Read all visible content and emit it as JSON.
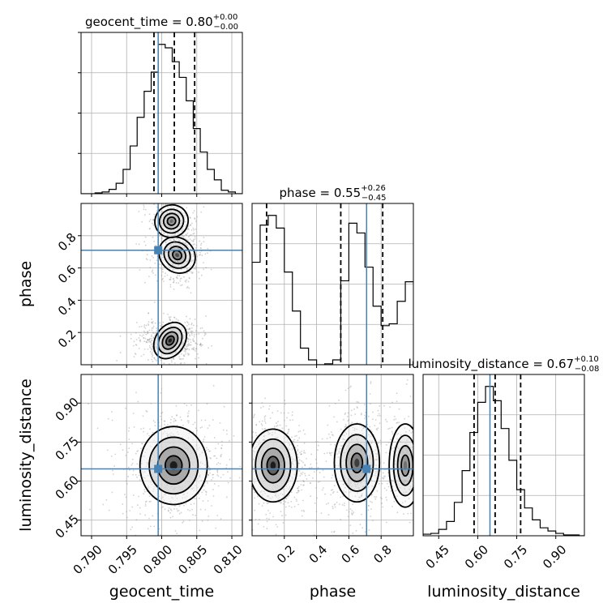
{
  "chart_data": {
    "type": "corner",
    "parameters": [
      "geocent_time",
      "phase",
      "luminosity_distance"
    ],
    "axis_labels": {
      "geocent_time": "geocent_time",
      "phase": "phase",
      "luminosity_distance": "luminosity_distance"
    },
    "titles": [
      {
        "param": "geocent_time",
        "text": "geocent_time = 0.80",
        "upper": "+0.00",
        "lower": "−0.00"
      },
      {
        "param": "phase",
        "text": "phase = 0.55",
        "upper": "+0.26",
        "lower": "−0.45"
      },
      {
        "param": "luminosity_distance",
        "text": "luminosity_distance = 0.67",
        "upper": "+0.10",
        "lower": "−0.08"
      }
    ],
    "ranges": {
      "geocent_time": [
        0.7885,
        0.8115
      ],
      "phase": [
        0.0,
        1.0
      ],
      "luminosity_distance": [
        0.39,
        1.01
      ]
    },
    "ticks": {
      "geocent_time": [
        0.79,
        0.795,
        0.8,
        0.805,
        0.81
      ],
      "phase": [
        0.2,
        0.4,
        0.6,
        0.8
      ],
      "luminosity_distance": [
        0.45,
        0.6,
        0.75,
        0.9
      ]
    },
    "tick_labels": {
      "geocent_time": [
        "0.790",
        "0.795",
        "0.800",
        "0.805",
        "0.810"
      ],
      "phase": [
        "0.2",
        "0.4",
        "0.6",
        "0.8"
      ],
      "luminosity_distance": [
        "0.45",
        "0.60",
        "0.75",
        "0.90"
      ]
    },
    "truths": {
      "geocent_time": 0.7995,
      "phase": 0.71,
      "luminosity_distance": 0.647
    },
    "quantiles": {
      "geocent_time": [
        0.7989,
        0.8018,
        0.8047
      ],
      "phase": [
        0.09,
        0.55,
        0.81
      ],
      "luminosity_distance": [
        0.586,
        0.667,
        0.765
      ]
    },
    "histograms": {
      "geocent_time": {
        "edges": [
          0.7885,
          0.7895,
          0.7905,
          0.7915,
          0.7925,
          0.7935,
          0.7945,
          0.7955,
          0.7965,
          0.7975,
          0.7985,
          0.7995,
          0.8005,
          0.8015,
          0.8025,
          0.8035,
          0.8045,
          0.8055,
          0.8065,
          0.8075,
          0.8085,
          0.8095,
          0.8105,
          0.8115
        ],
        "counts": [
          0,
          0,
          1,
          2,
          5,
          12,
          28,
          55,
          88,
          118,
          140,
          172,
          168,
          152,
          134,
          107,
          75,
          48,
          28,
          16,
          4,
          2,
          0
        ]
      },
      "phase": {
        "edges": [
          0.0,
          0.05,
          0.1,
          0.15,
          0.2,
          0.25,
          0.3,
          0.35,
          0.4,
          0.45,
          0.5,
          0.55,
          0.6,
          0.65,
          0.7,
          0.75,
          0.8,
          0.85,
          0.9,
          0.95,
          1.0
        ],
        "counts": [
          105,
          143,
          153,
          140,
          95,
          55,
          17,
          5,
          0,
          1,
          5,
          86,
          145,
          135,
          100,
          60,
          40,
          42,
          65,
          85
        ]
      },
      "luminosity_distance": {
        "edges": [
          0.39,
          0.42,
          0.45,
          0.48,
          0.51,
          0.54,
          0.57,
          0.6,
          0.63,
          0.66,
          0.69,
          0.72,
          0.75,
          0.78,
          0.81,
          0.84,
          0.87,
          0.9,
          0.93,
          0.96,
          0.99,
          1.01
        ],
        "counts": [
          2,
          3,
          8,
          18,
          42,
          82,
          130,
          168,
          188,
          170,
          135,
          95,
          58,
          35,
          20,
          10,
          6,
          3,
          1,
          1,
          0
        ]
      }
    },
    "density_blobs": {
      "phase_vs_geocent_time": [
        {
          "x": 0.8012,
          "y": 0.15,
          "sx": 0.0014,
          "sy": 0.045,
          "rot": -55,
          "w": 1.0
        },
        {
          "x": 0.8022,
          "y": 0.68,
          "sx": 0.0012,
          "sy": 0.06,
          "rot": -45,
          "w": 0.6
        },
        {
          "x": 0.8014,
          "y": 0.89,
          "sx": 0.0012,
          "sy": 0.05,
          "rot": -30,
          "w": 0.35
        }
      ],
      "luminosity_distance_vs_geocent_time": [
        {
          "x": 0.8017,
          "y": 0.66,
          "sx": 0.0024,
          "sy": 0.075,
          "rot": 0,
          "w": 1.0
        }
      ],
      "luminosity_distance_vs_phase": [
        {
          "x": 0.13,
          "y": 0.66,
          "sx": 0.075,
          "sy": 0.07,
          "rot": 0,
          "w": 1.0
        },
        {
          "x": 0.65,
          "y": 0.67,
          "sx": 0.07,
          "sy": 0.075,
          "rot": 0,
          "w": 0.7
        },
        {
          "x": 0.95,
          "y": 0.66,
          "sx": 0.05,
          "sy": 0.08,
          "rot": 0,
          "w": 0.35
        }
      ]
    },
    "colors": {
      "truth": "#4682b4",
      "hist": "#000000",
      "grid": "#b0b0b0",
      "scatter": "#9a9a9a"
    },
    "grid": true
  }
}
